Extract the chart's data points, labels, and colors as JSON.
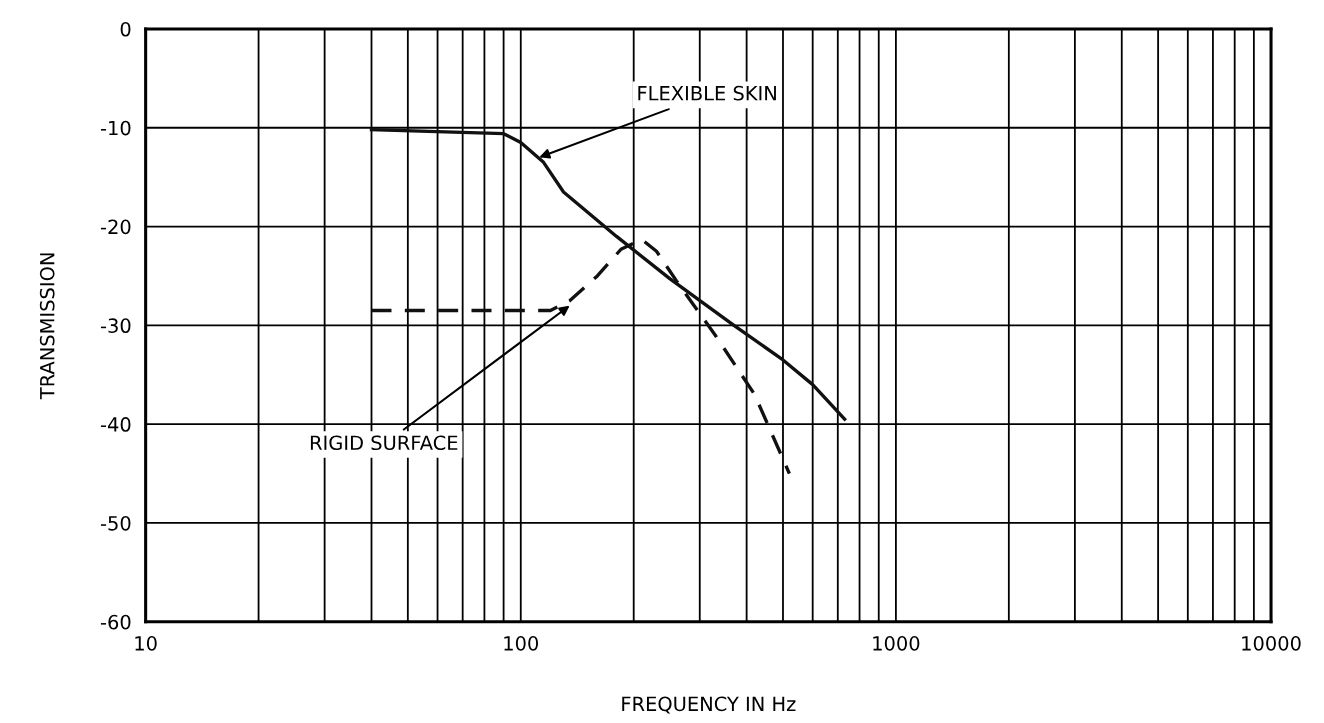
{
  "chart_data": {
    "type": "line",
    "xlabel": "FREQUENCY IN Hz",
    "ylabel": "TRANSMISSION",
    "log": "x",
    "grid": true,
    "marker": "none",
    "xlim": [
      10,
      10000
    ],
    "ylim": [
      -60,
      0
    ],
    "xticks": [
      10,
      {
        "value": 20,
        "label": null
      },
      {
        "value": 30,
        "label": null
      },
      {
        "value": 40,
        "label": null
      },
      {
        "value": 50,
        "label": null
      },
      {
        "value": 60,
        "label": null
      },
      {
        "value": 70,
        "label": null
      },
      {
        "value": 80,
        "label": null
      },
      {
        "value": 90,
        "label": null
      },
      100,
      {
        "value": 200,
        "label": null
      },
      {
        "value": 300,
        "label": null
      },
      {
        "value": 400,
        "label": null
      },
      {
        "value": 500,
        "label": null
      },
      {
        "value": 600,
        "label": null
      },
      {
        "value": 700,
        "label": null
      },
      {
        "value": 800,
        "label": null
      },
      {
        "value": 900,
        "label": null
      },
      1000,
      {
        "value": 2000,
        "label": null
      },
      {
        "value": 3000,
        "label": null
      },
      {
        "value": 4000,
        "label": null
      },
      {
        "value": 5000,
        "label": null
      },
      {
        "value": 6000,
        "label": null
      },
      {
        "value": 7000,
        "label": null
      },
      {
        "value": 8000,
        "label": null
      },
      {
        "value": 9000,
        "label": null
      },
      10000
    ],
    "yticks": [
      -60,
      -50,
      -40,
      -30,
      -20,
      -10,
      0
    ],
    "series": [
      {
        "color": "#111111",
        "line_style": "solid",
        "x": [
          40,
          90,
          100,
          115,
          130,
          180,
          250,
          370,
          500,
          600,
          730
        ],
        "values": [
          -10.2,
          -10.6,
          -11.5,
          -13.5,
          -16.5,
          -21,
          -25.3,
          -30,
          -33.5,
          -36,
          -39.5
        ]
      },
      {
        "color": "#111111",
        "line_style": "dashed",
        "x": [
          40,
          120,
          135,
          160,
          185,
          210,
          230,
          260,
          330,
          420,
          520
        ],
        "values": [
          -28.5,
          -28.5,
          -27.5,
          -25,
          -22.3,
          -21.3,
          -22.5,
          -25.5,
          -31,
          -37,
          -45
        ]
      }
    ],
    "annotations": [
      {
        "text": "FLEXIBLE SKIN",
        "x": 112,
        "y": -13
      },
      {
        "text": "RIGID SURFACE",
        "x": 135,
        "y": -28
      }
    ]
  }
}
